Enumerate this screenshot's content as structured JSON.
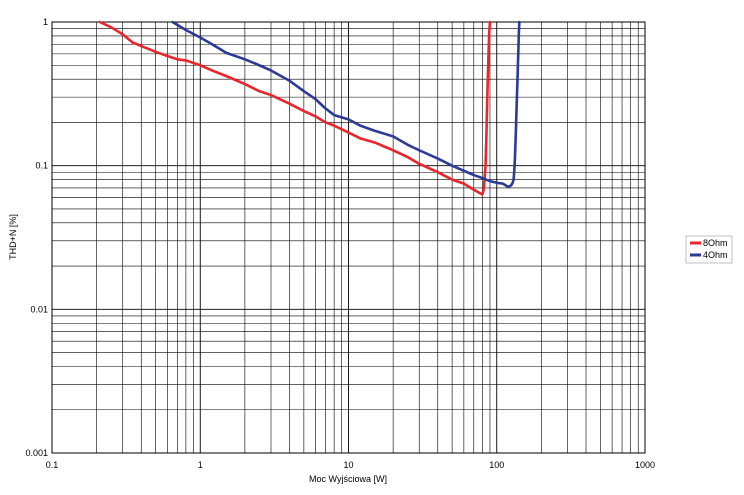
{
  "chart_data": {
    "type": "line",
    "xlabel": "Moc Wyjściowa [W]",
    "ylabel": "THD+N [%]",
    "x_scale": "log",
    "y_scale": "log",
    "xlim": [
      0.1,
      1000
    ],
    "ylim": [
      0.001,
      1
    ],
    "grid": true,
    "legend_position": "right",
    "x_ticks": [
      "0.1",
      "1",
      "10",
      "100",
      "1000"
    ],
    "y_ticks": [
      "0.001",
      "0.01",
      "0.1",
      "1"
    ],
    "series": [
      {
        "name": "8Ohm",
        "color": "#e8262b",
        "x": [
          0.21,
          0.25,
          0.3,
          0.35,
          0.4,
          0.5,
          0.6,
          0.7,
          0.8,
          1.0,
          1.2,
          1.5,
          2.0,
          2.5,
          3.0,
          4.0,
          5.0,
          6.0,
          7.0,
          8.0,
          10,
          12,
          15,
          20,
          25,
          30,
          40,
          50,
          60,
          70,
          80,
          82,
          84,
          85,
          86,
          87,
          88,
          89,
          90
        ],
        "y": [
          1.0,
          0.92,
          0.82,
          0.72,
          0.68,
          0.62,
          0.58,
          0.55,
          0.54,
          0.5,
          0.46,
          0.42,
          0.37,
          0.33,
          0.31,
          0.27,
          0.24,
          0.22,
          0.2,
          0.19,
          0.17,
          0.155,
          0.145,
          0.128,
          0.115,
          0.103,
          0.09,
          0.08,
          0.075,
          0.068,
          0.063,
          0.07,
          0.1,
          0.15,
          0.25,
          0.4,
          0.6,
          0.85,
          1.0
        ]
      },
      {
        "name": "4Ohm",
        "color": "#2b3a98",
        "x": [
          0.65,
          0.8,
          1.0,
          1.2,
          1.5,
          2.0,
          2.5,
          3.0,
          4.0,
          5.0,
          6.0,
          7.0,
          8.0,
          10,
          12,
          15,
          20,
          25,
          30,
          40,
          50,
          60,
          70,
          80,
          90,
          100,
          110,
          120,
          125,
          128,
          130,
          132,
          134,
          136,
          138,
          140,
          141,
          142
        ],
        "y": [
          1.0,
          0.88,
          0.78,
          0.7,
          0.61,
          0.55,
          0.5,
          0.46,
          0.39,
          0.33,
          0.29,
          0.25,
          0.225,
          0.21,
          0.19,
          0.175,
          0.16,
          0.14,
          0.128,
          0.112,
          0.1,
          0.092,
          0.086,
          0.082,
          0.078,
          0.076,
          0.075,
          0.071,
          0.073,
          0.076,
          0.08,
          0.1,
          0.15,
          0.25,
          0.4,
          0.65,
          0.85,
          1.0
        ]
      }
    ]
  }
}
